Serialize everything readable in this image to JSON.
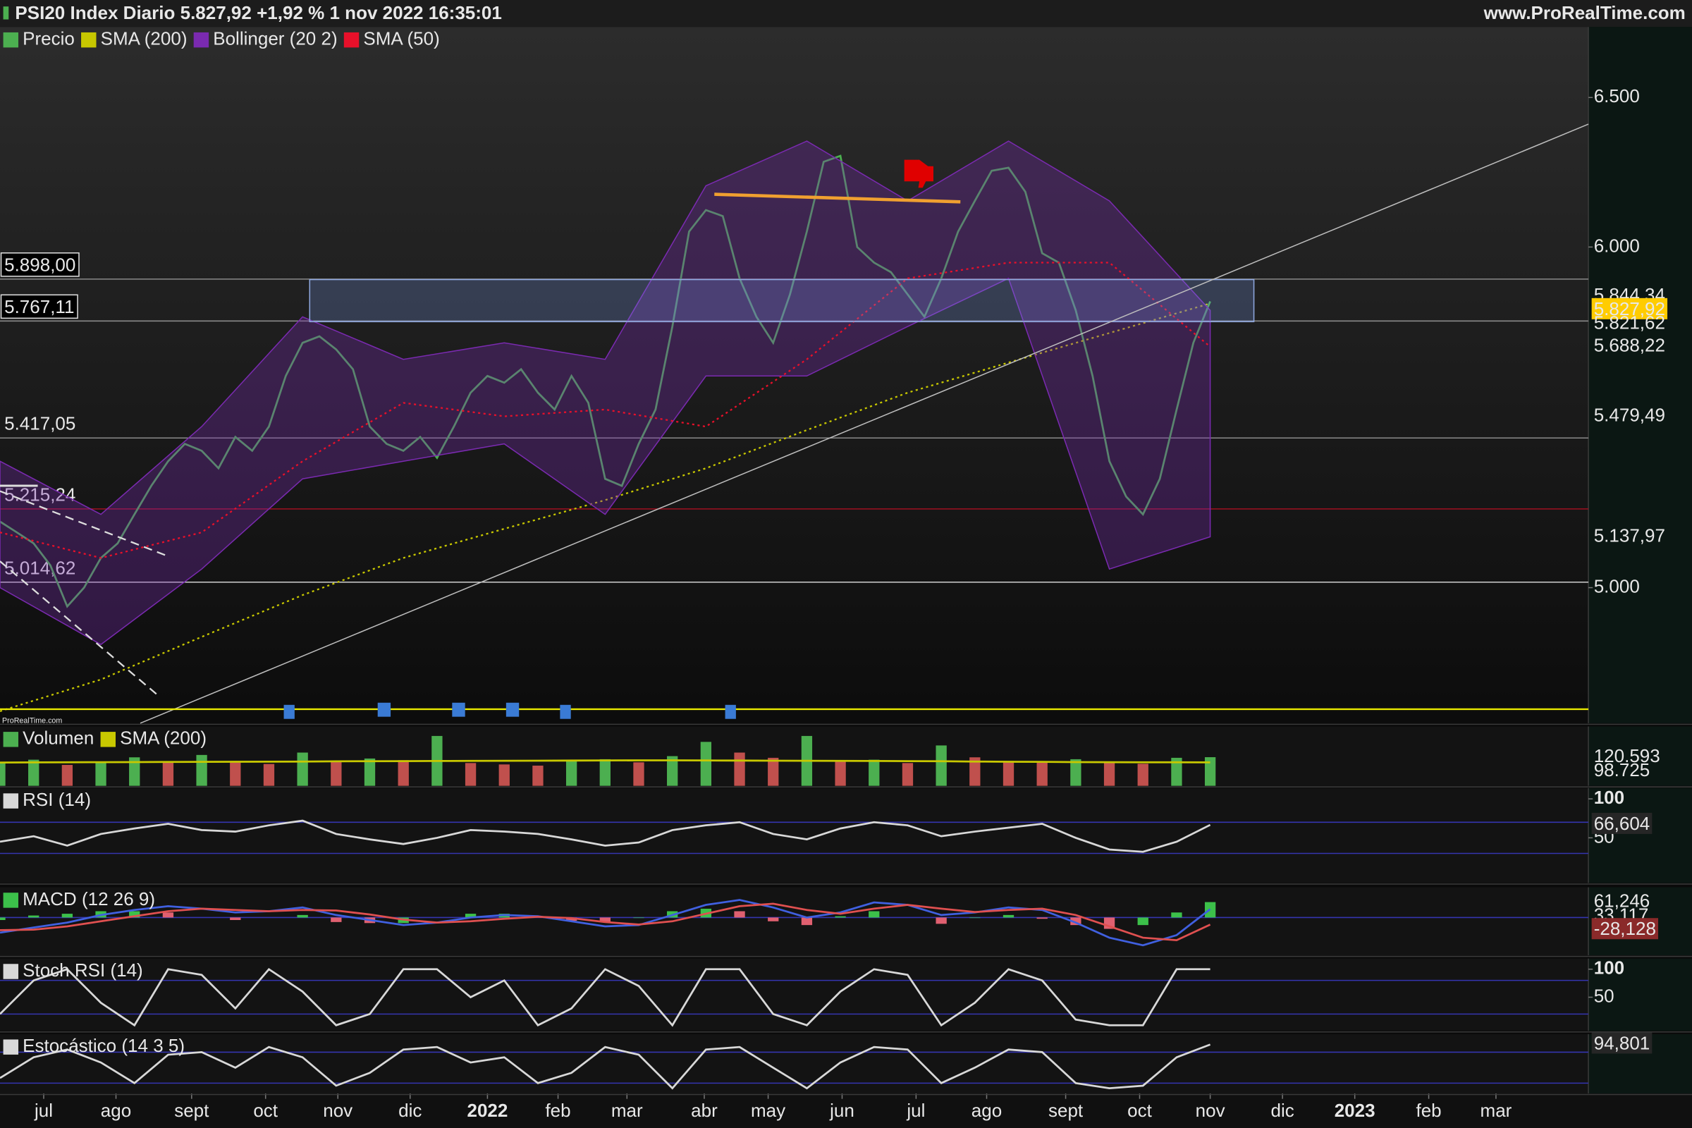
{
  "chart_data": [
    {
      "type": "line",
      "title": "PSI20 Index Diario 5.827,92 +1,92 % 1 nov 2022 16:35:01",
      "source": "www.ProRealTime.com",
      "watermark": "ProRealTime.com",
      "log": true,
      "xlim": [
        0,
        94.5
      ],
      "ylim": [
        4650,
        6750
      ],
      "yticks": [
        {
          "value": 6500,
          "label": "6.500"
        },
        {
          "value": 6000,
          "label": "6.000"
        },
        {
          "value": 5000,
          "label": "5.000"
        }
      ],
      "xticks": [
        {
          "value": 2.6,
          "label": "jul"
        },
        {
          "value": 6.9,
          "label": "ago"
        },
        {
          "value": 11.4,
          "label": "sept"
        },
        {
          "value": 15.8,
          "label": "oct"
        },
        {
          "value": 20.1,
          "label": "nov"
        },
        {
          "value": 24.4,
          "label": "dic"
        },
        {
          "value": 29.0,
          "label": "2022"
        },
        {
          "value": 33.2,
          "label": "feb"
        },
        {
          "value": 37.3,
          "label": "mar"
        },
        {
          "value": 41.9,
          "label": "abr"
        },
        {
          "value": 45.7,
          "label": "may"
        },
        {
          "value": 50.1,
          "label": "jun"
        },
        {
          "value": 54.5,
          "label": "jul"
        },
        {
          "value": 58.7,
          "label": "ago"
        },
        {
          "value": 63.4,
          "label": "sept"
        },
        {
          "value": 67.8,
          "label": "oct"
        },
        {
          "value": 72.0,
          "label": "nov"
        },
        {
          "value": 76.3,
          "label": "dic"
        },
        {
          "value": 80.6,
          "label": "2023"
        },
        {
          "value": 85.0,
          "label": "feb"
        },
        {
          "value": 89.0,
          "label": "mar"
        }
      ],
      "level_color": "#8a8a8a",
      "levels": [
        {
          "value": 5898,
          "label": "5.898,00",
          "boxed": true
        },
        {
          "value": 5767.11,
          "label": "5.767,11",
          "boxed": true
        },
        {
          "value": 5417.05,
          "label": "5.417,05"
        },
        {
          "value": 5215.24,
          "label": "5.215,24",
          "color": "#a01020"
        },
        {
          "value": 5014.62,
          "label": "5.014,62",
          "color": "#d0d0d0"
        }
      ],
      "series": [
        {
          "name": "Precio",
          "color": "#4caf50",
          "values": [
            5180,
            5150,
            5120,
            5060,
            4950,
            5000,
            5080,
            5120,
            5200,
            5280,
            5350,
            5400,
            5380,
            5330,
            5420,
            5380,
            5450,
            5600,
            5700,
            5720,
            5680,
            5620,
            5450,
            5400,
            5380,
            5420,
            5360,
            5450,
            5550,
            5600,
            5580,
            5620,
            5550,
            5500,
            5600,
            5520,
            5300,
            5280,
            5400,
            5500,
            5750,
            6050,
            6120,
            6100,
            5900,
            5780,
            5700,
            5850,
            6050,
            6280,
            6300,
            6000,
            5950,
            5920,
            5850,
            5780,
            5900,
            6050,
            6150,
            6250,
            6260,
            6180,
            5980,
            5950,
            5800,
            5600,
            5350,
            5250,
            5200,
            5300,
            5500,
            5700,
            5827.92
          ]
        },
        {
          "name": "SMA (200)",
          "color": "#c8c800",
          "dash": true,
          "x": [
            0,
            6,
            12,
            18,
            24,
            30,
            36,
            42,
            48,
            54,
            60,
            66,
            72
          ],
          "values": [
            4680,
            4760,
            4870,
            4980,
            5080,
            5160,
            5240,
            5330,
            5440,
            5550,
            5640,
            5730,
            5821.62
          ]
        },
        {
          "name": "Bollinger (20 2)",
          "color": "#7a2ab0",
          "type": "band",
          "x": [
            0,
            6,
            12,
            18,
            24,
            30,
            36,
            42,
            48,
            54,
            60,
            66,
            72
          ],
          "upper": [
            5350,
            5200,
            5450,
            5780,
            5650,
            5700,
            5650,
            6200,
            6350,
            6150,
            6350,
            6150,
            5800
          ],
          "lower": [
            5000,
            4850,
            5050,
            5300,
            5350,
            5400,
            5200,
            5600,
            5600,
            5750,
            5900,
            5050,
            5137.97
          ]
        },
        {
          "name": "SMA (50)",
          "color": "#e8102a",
          "dash": true,
          "x": [
            0,
            6,
            12,
            18,
            24,
            30,
            36,
            42,
            48,
            54,
            60,
            66,
            72
          ],
          "values": [
            5150,
            5080,
            5150,
            5350,
            5520,
            5480,
            5500,
            5450,
            5650,
            5900,
            5950,
            5950,
            5688.22
          ]
        }
      ],
      "right_labels": [
        {
          "value": 5844.34,
          "label": "5.844,34",
          "color": "#b0a800"
        },
        {
          "value": 5827.92,
          "label": "5.827,92",
          "color": "#000000",
          "bg": "#ffcc00"
        },
        {
          "value": 5821.62,
          "label": "5.821,62",
          "color": "#8a3ab0"
        },
        {
          "value": 5688.22,
          "label": "5.688,22",
          "color": "#e8102a"
        },
        {
          "value": 5479.49,
          "label": "5.479,49",
          "color": "#8a3ac0"
        },
        {
          "value": 5137.97,
          "label": "5.137,97",
          "color": "#7a3aa8"
        }
      ]
    },
    {
      "type": "bar",
      "ylim": [
        0,
        250000
      ],
      "x": [
        0,
        2,
        4,
        6,
        8,
        10,
        12,
        14,
        16,
        18,
        20,
        22,
        24,
        26,
        28,
        30,
        32,
        34,
        36,
        38,
        40,
        42,
        44,
        46,
        48,
        50,
        52,
        54,
        56,
        58,
        60,
        62,
        64,
        66,
        68,
        70,
        72
      ],
      "series": [
        {
          "name": "Volumen",
          "color": "#4caf50",
          "down_color": "#c0504d",
          "values": [
            95000,
            110000,
            88000,
            102000,
            120000,
            98000,
            130000,
            105000,
            92000,
            140000,
            100000,
            115000,
            108000,
            210000,
            96000,
            90000,
            85000,
            104000,
            112000,
            99000,
            125000,
            185000,
            140000,
            118000,
            210000,
            102000,
            110000,
            96000,
            170000,
            120000,
            105000,
            98000,
            112000,
            100000,
            93000,
            118000,
            120593
          ]
        },
        {
          "name": "SMA (200)",
          "color": "#c8c800",
          "type": "line",
          "values": [
            98000,
            98500,
            99000,
            99500,
            100000,
            100500,
            101000,
            101500,
            102000,
            102500,
            103000,
            103500,
            104000,
            104500,
            105000,
            105500,
            106000,
            106500,
            107000,
            107200,
            107400,
            107000,
            106500,
            106000,
            105500,
            105000,
            104500,
            104000,
            103500,
            102500,
            101500,
            100800,
            100200,
            99700,
            99300,
            99000,
            98725
          ]
        }
      ],
      "right_labels": [
        {
          "value": 120593,
          "label": "120.593",
          "color": "#c8c800"
        },
        {
          "value": 98725,
          "label": "98.725",
          "color": "#6ad36a"
        }
      ]
    },
    {
      "type": "line",
      "title": "RSI (14)",
      "ylim": [
        -8,
        114
      ],
      "yticks": [
        100,
        50
      ],
      "level_color": "#3535b0",
      "levels": [
        {
          "value": 70
        },
        {
          "value": 30
        }
      ],
      "x": [
        0,
        2,
        4,
        6,
        8,
        10,
        12,
        14,
        16,
        18,
        20,
        22,
        24,
        26,
        28,
        30,
        32,
        34,
        36,
        38,
        40,
        42,
        44,
        46,
        48,
        50,
        52,
        54,
        56,
        58,
        60,
        62,
        64,
        66,
        68,
        70,
        72
      ],
      "series": [
        {
          "color": "#d8d8d8",
          "values": [
            45,
            52,
            40,
            55,
            62,
            68,
            60,
            58,
            66,
            72,
            55,
            48,
            42,
            50,
            60,
            58,
            55,
            48,
            40,
            44,
            60,
            66,
            70,
            55,
            48,
            62,
            70,
            66,
            52,
            58,
            63,
            68,
            50,
            35,
            32,
            45,
            66.604
          ]
        }
      ],
      "right_labels": [
        {
          "value": 66.604,
          "label": "66,604",
          "color": "#ffffff",
          "bg": "#262626"
        }
      ]
    },
    {
      "type": "line",
      "title": "MACD (12 26 9)",
      "ylim": [
        -150,
        120
      ],
      "level_color": "#3535b0",
      "levels": [
        {
          "value": 0
        }
      ],
      "x": [
        0,
        2,
        4,
        6,
        8,
        10,
        12,
        14,
        16,
        18,
        20,
        22,
        24,
        26,
        28,
        30,
        32,
        34,
        36,
        38,
        40,
        42,
        44,
        46,
        48,
        50,
        52,
        54,
        56,
        58,
        60,
        62,
        64,
        66,
        68,
        70,
        72
      ],
      "series": [
        {
          "type": "bar",
          "color": "#3cc04a",
          "down_color": "#e06070",
          "values": [
            -10,
            8,
            15,
            25,
            25,
            20,
            0,
            -10,
            0,
            10,
            -18,
            -22,
            -22,
            0,
            15,
            15,
            2,
            -13,
            -17,
            -2,
            25,
            35,
            25,
            -15,
            -30,
            5,
            25,
            0,
            -25,
            -2,
            10,
            -5,
            -30,
            -45,
            -30,
            20,
            61.246
          ]
        },
        {
          "color": "#4060e0",
          "values": [
            -60,
            -40,
            -20,
            10,
            30,
            45,
            35,
            20,
            25,
            40,
            10,
            -10,
            -30,
            -20,
            0,
            10,
            5,
            -15,
            -35,
            -30,
            10,
            50,
            70,
            40,
            0,
            20,
            60,
            50,
            10,
            20,
            40,
            30,
            -20,
            -80,
            -110,
            -70,
            33.117
          ]
        },
        {
          "color": "#e05050",
          "values": [
            -50,
            -48,
            -35,
            -15,
            5,
            25,
            35,
            30,
            25,
            30,
            28,
            12,
            -8,
            -20,
            -15,
            -5,
            3,
            -2,
            -18,
            -28,
            -15,
            15,
            45,
            55,
            30,
            15,
            35,
            50,
            35,
            22,
            30,
            35,
            10,
            -35,
            -80,
            -90,
            -28.128
          ]
        }
      ],
      "right_labels": [
        {
          "value": 61.246,
          "label": "61,246",
          "color": "#3cc04a"
        },
        {
          "value": 33.117,
          "label": "33,117",
          "color": "#6070f0"
        },
        {
          "value": -28.128,
          "label": "-28,128",
          "color": "#ffffff",
          "bg": "#8a2a2a"
        }
      ]
    },
    {
      "type": "line",
      "title": "Stoch RSI (14)",
      "ylim": [
        -10,
        119
      ],
      "yticks": [
        100,
        50
      ],
      "level_color": "#3535b0",
      "levels": [
        {
          "value": 80
        },
        {
          "value": 20
        }
      ],
      "x": [
        0,
        2,
        4,
        6,
        8,
        10,
        12,
        14,
        16,
        18,
        20,
        22,
        24,
        26,
        28,
        30,
        32,
        34,
        36,
        38,
        40,
        42,
        44,
        46,
        48,
        50,
        52,
        54,
        56,
        58,
        60,
        62,
        64,
        66,
        68,
        70,
        72
      ],
      "series": [
        {
          "color": "#d8d8d8",
          "values": [
            20,
            80,
            100,
            40,
            0,
            100,
            90,
            30,
            100,
            60,
            0,
            20,
            100,
            100,
            50,
            80,
            0,
            30,
            100,
            70,
            0,
            100,
            100,
            20,
            0,
            60,
            100,
            90,
            0,
            40,
            100,
            80,
            10,
            0,
            0,
            100,
            100
          ]
        }
      ]
    },
    {
      "type": "line",
      "title": "Estocástico (14 3 5)",
      "ylim": [
        0,
        115
      ],
      "level_color": "#3535b0",
      "levels": [
        {
          "value": 80
        },
        {
          "value": 20
        }
      ],
      "x": [
        0,
        2,
        4,
        6,
        8,
        10,
        12,
        14,
        16,
        18,
        20,
        22,
        24,
        26,
        28,
        30,
        32,
        34,
        36,
        38,
        40,
        42,
        44,
        46,
        48,
        50,
        52,
        54,
        56,
        58,
        60,
        62,
        64,
        66,
        68,
        70,
        72
      ],
      "series": [
        {
          "color": "#d8d8d8",
          "values": [
            30,
            70,
            85,
            60,
            20,
            75,
            80,
            50,
            90,
            70,
            15,
            40,
            85,
            90,
            60,
            70,
            20,
            40,
            90,
            75,
            10,
            85,
            90,
            50,
            10,
            60,
            90,
            85,
            20,
            50,
            85,
            80,
            20,
            10,
            15,
            70,
            94.801
          ]
        }
      ],
      "right_labels": [
        {
          "value": 94.801,
          "label": "94,801",
          "color": "#ffffff",
          "bg": "#262626"
        }
      ]
    }
  ]
}
